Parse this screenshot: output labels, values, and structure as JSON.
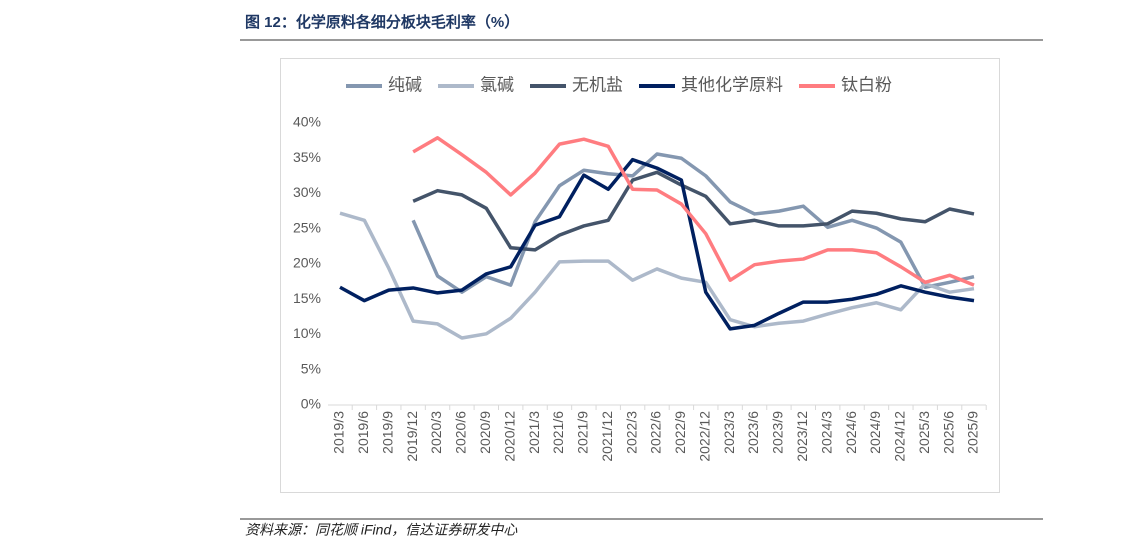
{
  "chart_data": {
    "type": "line",
    "title": "图 12：化学原料各细分板块毛利率（%）",
    "source": "资料来源：同花顺 iFind，信达证券研发中心",
    "categories": [
      "2019/3",
      "2019/6",
      "2019/9",
      "2019/12",
      "2020/3",
      "2020/6",
      "2020/9",
      "2020/12",
      "2021/3",
      "2021/6",
      "2021/9",
      "2021/12",
      "2022/3",
      "2022/6",
      "2022/9",
      "2022/12",
      "2023/3",
      "2023/6",
      "2023/9",
      "2023/12",
      "2024/3",
      "2024/6",
      "2024/9",
      "2024/12",
      "2025/3",
      "2025/6",
      "2025/9"
    ],
    "series": [
      {
        "name": "纯碱",
        "color": "#8497b0",
        "values": [
          null,
          null,
          null,
          26.2,
          18.3,
          16.0,
          18.2,
          17.0,
          26.0,
          31.1,
          33.3,
          32.8,
          32.5,
          35.6,
          35.0,
          32.5,
          28.8,
          27.1,
          27.5,
          28.2,
          25.2,
          26.2,
          25.1,
          23.1,
          16.7,
          17.4,
          18.2
        ]
      },
      {
        "name": "氯碱",
        "color": "#adb9ca",
        "values": [
          27.2,
          26.2,
          19.4,
          11.9,
          11.5,
          9.5,
          10.1,
          12.3,
          16.0,
          20.3,
          20.4,
          20.4,
          17.7,
          19.3,
          18.0,
          17.4,
          12.1,
          11.1,
          11.6,
          11.9,
          12.9,
          13.8,
          14.5,
          13.5,
          17.2,
          16.0,
          16.5
        ]
      },
      {
        "name": "无机盐",
        "color": "#44546a",
        "values": [
          null,
          null,
          null,
          28.9,
          30.4,
          29.8,
          27.9,
          22.3,
          22.0,
          24.1,
          25.4,
          26.2,
          31.9,
          33.0,
          31.2,
          29.6,
          25.7,
          26.2,
          25.4,
          25.4,
          25.7,
          27.5,
          27.2,
          26.4,
          26.0,
          27.8,
          27.1
        ]
      },
      {
        "name": "其他化学原料",
        "color": "#002060",
        "values": [
          16.7,
          14.8,
          16.3,
          16.6,
          15.9,
          16.3,
          18.6,
          19.6,
          25.5,
          26.7,
          32.6,
          30.6,
          34.8,
          33.6,
          31.9,
          16.0,
          10.8,
          11.3,
          13.0,
          14.6,
          14.6,
          15.0,
          15.7,
          16.9,
          16.0,
          15.3,
          14.8
        ]
      },
      {
        "name": "钛白粉",
        "color": "#ff7c80",
        "values": [
          null,
          null,
          null,
          35.9,
          37.9,
          35.5,
          33.0,
          29.8,
          32.9,
          37.0,
          37.7,
          36.7,
          30.6,
          30.5,
          28.5,
          24.3,
          17.7,
          19.9,
          20.4,
          20.7,
          22.0,
          22.0,
          21.6,
          19.6,
          17.4,
          18.4,
          17.0
        ]
      }
    ],
    "ylim": [
      0,
      40
    ],
    "yticks": [
      {
        "value": 0,
        "label": "0%"
      },
      {
        "value": 5,
        "label": "5%"
      },
      {
        "value": 10,
        "label": "10%"
      },
      {
        "value": 15,
        "label": "15%"
      },
      {
        "value": 20,
        "label": "20%"
      },
      {
        "value": 25,
        "label": "25%"
      },
      {
        "value": 30,
        "label": "30%"
      },
      {
        "value": 35,
        "label": "35%"
      },
      {
        "value": 40,
        "label": "40%"
      }
    ],
    "grid": false,
    "legend": "top"
  }
}
